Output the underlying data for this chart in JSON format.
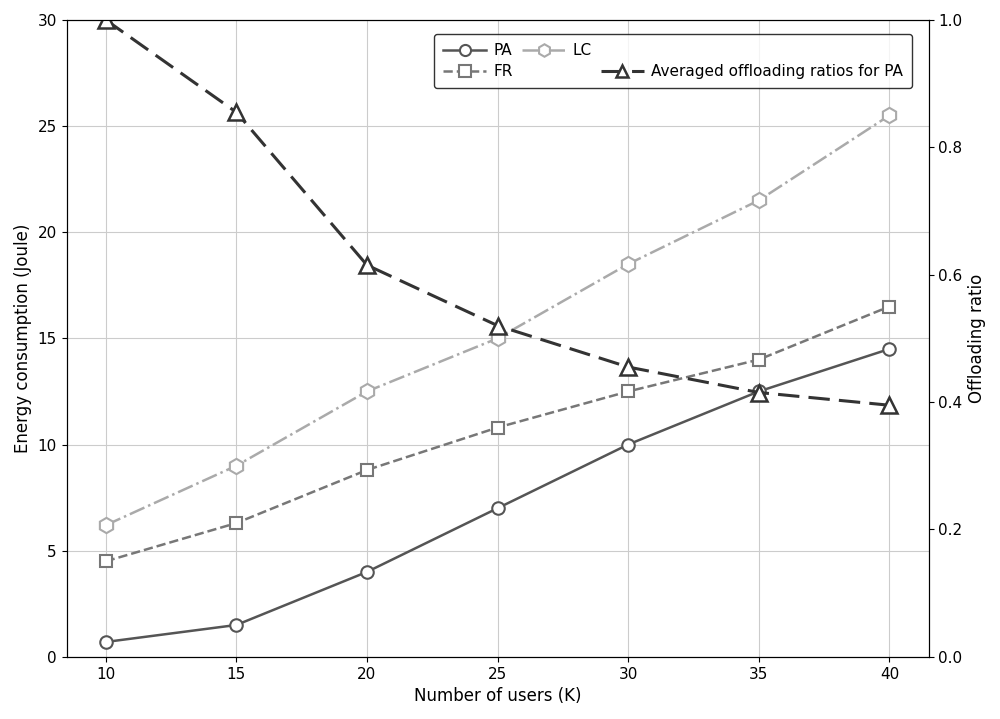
{
  "x": [
    10,
    15,
    20,
    25,
    30,
    35,
    40
  ],
  "PA": [
    0.7,
    1.5,
    4.0,
    7.0,
    10.0,
    12.5,
    14.5
  ],
  "FR": [
    4.5,
    6.3,
    8.8,
    10.8,
    12.5,
    14.0,
    16.5
  ],
  "LC": [
    6.2,
    9.0,
    12.5,
    15.0,
    18.5,
    21.5,
    25.5
  ],
  "offloading_PA": [
    1.0,
    0.855,
    0.615,
    0.52,
    0.455,
    0.415,
    0.395
  ],
  "PA_label": "PA",
  "FR_label": "FR",
  "LC_label": "LC",
  "offloading_label": "Averaged offloading ratios for PA",
  "xlabel": "Number of users (K)",
  "ylabel_left": "Energy consumption (Joule)",
  "ylabel_right": "Offloading ratio",
  "ylim_left": [
    0,
    30
  ],
  "ylim_right": [
    0.0,
    1.0
  ],
  "xlim": [
    8.5,
    41.5
  ],
  "xticks": [
    10,
    15,
    20,
    25,
    30,
    35,
    40
  ],
  "yticks_left": [
    0,
    5,
    10,
    15,
    20,
    25,
    30
  ],
  "yticks_right": [
    0.0,
    0.2,
    0.4,
    0.6,
    0.8,
    1.0
  ],
  "color_PA": "#555555",
  "color_FR": "#777777",
  "color_LC": "#aaaaaa",
  "color_offloading": "#333333",
  "background_color": "#ffffff",
  "grid_color": "#cccccc",
  "legend_fontsize": 11,
  "label_fontsize": 12,
  "tick_fontsize": 11,
  "figsize": [
    10.0,
    7.19
  ],
  "dpi": 100
}
